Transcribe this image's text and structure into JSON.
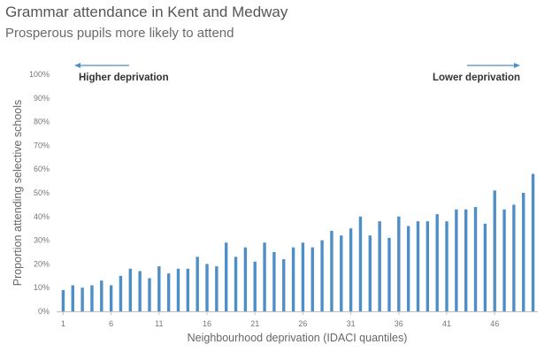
{
  "title": "Grammar attendance in Kent and Medway",
  "subtitle": "Prosperous pupils more likely to attend",
  "annotations": {
    "left": "Higher deprivation",
    "right": "Lower deprivation"
  },
  "colors": {
    "bar": "#4f8fc8",
    "arrow": "#4f8fc8"
  },
  "chart_data": {
    "type": "bar",
    "xlabel": "Neighbourhood deprivation (IDACI quantiles)",
    "ylabel": "Proportion attending selective schools",
    "ylim": [
      0,
      1
    ],
    "yticks": [
      "0%",
      "10%",
      "20%",
      "30%",
      "40%",
      "50%",
      "60%",
      "70%",
      "80%",
      "90%",
      "100%"
    ],
    "xticks": [
      "1",
      "6",
      "11",
      "16",
      "21",
      "26",
      "31",
      "36",
      "41",
      "46"
    ],
    "grid": false,
    "categories": [
      1,
      2,
      3,
      4,
      5,
      6,
      7,
      8,
      9,
      10,
      11,
      12,
      13,
      14,
      15,
      16,
      17,
      18,
      19,
      20,
      21,
      22,
      23,
      24,
      25,
      26,
      27,
      28,
      29,
      30,
      31,
      32,
      33,
      34,
      35,
      36,
      37,
      38,
      39,
      40,
      41,
      42,
      43,
      44,
      45,
      46,
      47,
      48,
      49,
      50
    ],
    "values": [
      0.09,
      0.11,
      0.1,
      0.11,
      0.13,
      0.11,
      0.15,
      0.18,
      0.17,
      0.14,
      0.19,
      0.16,
      0.18,
      0.18,
      0.23,
      0.2,
      0.19,
      0.29,
      0.23,
      0.27,
      0.21,
      0.29,
      0.25,
      0.22,
      0.27,
      0.29,
      0.27,
      0.3,
      0.34,
      0.32,
      0.35,
      0.4,
      0.32,
      0.38,
      0.31,
      0.4,
      0.36,
      0.38,
      0.38,
      0.41,
      0.38,
      0.43,
      0.43,
      0.44,
      0.37,
      0.51,
      0.43,
      0.45,
      0.5,
      0.58
    ]
  }
}
